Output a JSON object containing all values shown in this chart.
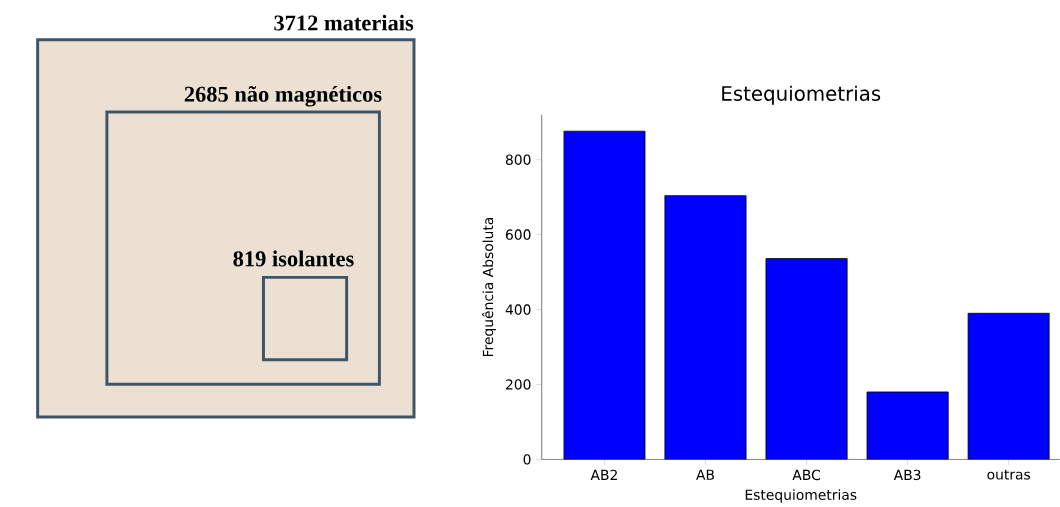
{
  "chart_data": [
    {
      "type": "other",
      "categories": [
        "materiais",
        "não magnéticos",
        "isolantes"
      ],
      "values": [
        3712,
        2685,
        819
      ],
      "data_labels": true,
      "color": "#3e5468"
    },
    {
      "type": "bar",
      "title": "Estequiometrias",
      "xlabel": "Estequiometrias",
      "ylabel": "Frequência Absoluta",
      "categories": [
        "AB2",
        "AB",
        "ABC",
        "AB3",
        "outras"
      ],
      "values": [
        876,
        704,
        536,
        180,
        390
      ],
      "color": "#0000ff",
      "ylim": [
        0,
        920
      ],
      "yticks": [
        0,
        200,
        400,
        600,
        800
      ],
      "grid": false
    }
  ]
}
